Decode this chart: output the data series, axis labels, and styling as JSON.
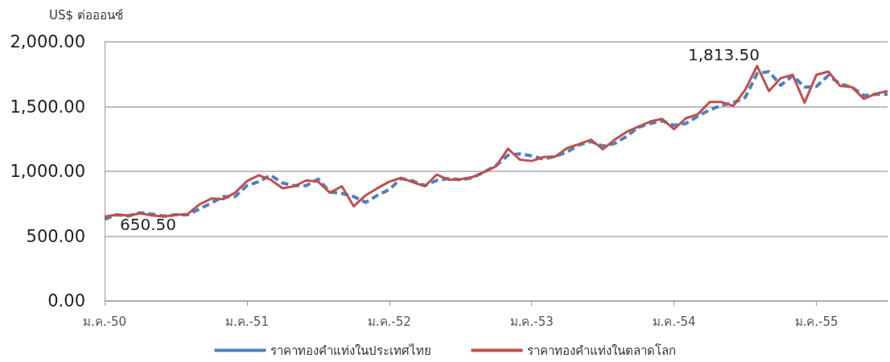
{
  "chart_data": {
    "type": "line",
    "ylabel": "US$ ต่อออนซ์",
    "categories": [
      "ม.ค.-50",
      null,
      null,
      null,
      null,
      null,
      null,
      null,
      null,
      null,
      null,
      null,
      "ม.ค.-51",
      null,
      null,
      null,
      null,
      null,
      null,
      null,
      null,
      null,
      null,
      null,
      "ม.ค.-52",
      null,
      null,
      null,
      null,
      null,
      null,
      null,
      null,
      null,
      null,
      null,
      "ม.ค.-53",
      null,
      null,
      null,
      null,
      null,
      null,
      null,
      null,
      null,
      null,
      null,
      "ม.ค.-54",
      null,
      null,
      null,
      null,
      null,
      null,
      null,
      null,
      null,
      null,
      null,
      "ม.ค.-55",
      null,
      null,
      null,
      null,
      null,
      null
    ],
    "series": [
      {
        "name": "ราคาทองคำแท่งในประเทศไทย",
        "color": "#4f81bd",
        "line_style": "dashed",
        "values": [
          630,
          665,
          655,
          680,
          670,
          655,
          665,
          665,
          710,
          755,
          805,
          805,
          890,
          920,
          970,
          910,
          890,
          890,
          940,
          840,
          830,
          805,
          760,
          815,
          860,
          945,
          925,
          890,
          930,
          945,
          935,
          950,
          995,
          1045,
          1125,
          1135,
          1120,
          1095,
          1115,
          1150,
          1205,
          1230,
          1195,
          1215,
          1270,
          1340,
          1370,
          1390,
          1355,
          1370,
          1425,
          1475,
          1510,
          1530,
          1570,
          1755,
          1770,
          1665,
          1740,
          1650,
          1655,
          1740,
          1675,
          1650,
          1585,
          1595,
          1595
        ]
      },
      {
        "name": "ราคาทองคำแท่งในตลาดโลก",
        "color": "#c0504d",
        "line_style": "solid",
        "values": [
          650.5,
          665,
          660,
          675,
          660,
          650,
          665,
          670,
          745,
          790,
          785,
          835,
          925,
          970,
          935,
          870,
          885,
          930,
          920,
          835,
          885,
          730,
          815,
          870,
          920,
          950,
          915,
          885,
          975,
          935,
          940,
          955,
          995,
          1040,
          1175,
          1090,
          1080,
          1110,
          1115,
          1180,
          1210,
          1245,
          1170,
          1245,
          1305,
          1345,
          1385,
          1405,
          1325,
          1410,
          1440,
          1535,
          1535,
          1505,
          1630,
          1813.5,
          1620,
          1720,
          1745,
          1530,
          1745,
          1770,
          1660,
          1650,
          1560,
          1600,
          1620
        ]
      }
    ],
    "ylim": [
      0,
      2000
    ],
    "yticks": [
      {
        "value": 0,
        "label": "0.00"
      },
      {
        "value": 500,
        "label": "500.00"
      },
      {
        "value": 1000,
        "label": "1,000.00"
      },
      {
        "value": 1500,
        "label": "1,500.00"
      },
      {
        "value": 2000,
        "label": "2,000.00"
      }
    ],
    "annotations": [
      {
        "text": "650.50",
        "x": "ม.ค.-50",
        "y": 650.5
      },
      "1,813.50"
    ],
    "grid": "y",
    "legend": "bottom",
    "marker": "none"
  }
}
